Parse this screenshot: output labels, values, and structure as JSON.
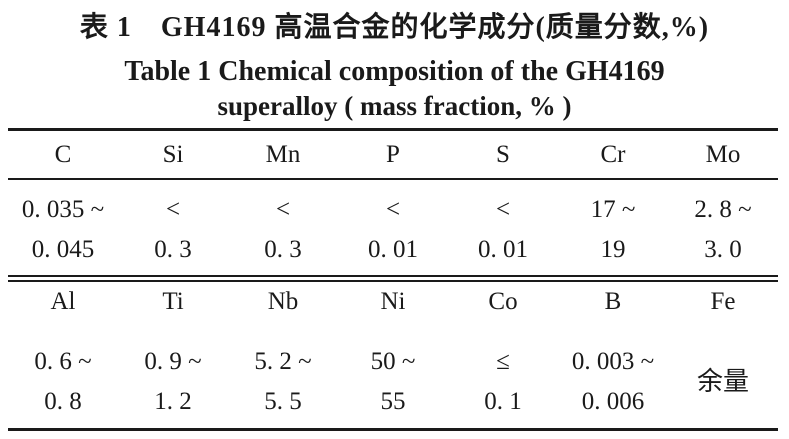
{
  "colors": {
    "text": "#1a1a1a",
    "background": "#ffffff"
  },
  "caption": {
    "zh": "表 1　GH4169 高温合金的化学成分(质量分数,%)",
    "en_line1": "Table 1   Chemical composition of the GH4169",
    "en_line2": "superalloy ( mass fraction, % )"
  },
  "table": {
    "section1": {
      "headers": [
        "C",
        "Si",
        "Mn",
        "P",
        "S",
        "Cr",
        "Mo"
      ],
      "row_line1": [
        "0. 035 ~",
        "<",
        "<",
        "<",
        "<",
        "17 ~",
        "2. 8 ~"
      ],
      "row_line2": [
        "0. 045",
        "0. 3",
        "0. 3",
        "0. 01",
        "0. 01",
        "19",
        "3. 0"
      ]
    },
    "section2": {
      "headers": [
        "Al",
        "Ti",
        "Nb",
        "Ni",
        "Co",
        "B",
        "Fe"
      ],
      "row_line1": [
        "0. 6 ~",
        "0. 9 ~",
        "5. 2 ~",
        "50 ~",
        "≤",
        "0. 003 ~"
      ],
      "row_line2": [
        "0. 8",
        "1. 2",
        "5. 5",
        "55",
        "0. 1",
        "0. 006"
      ],
      "fe_balance": "余量"
    }
  }
}
